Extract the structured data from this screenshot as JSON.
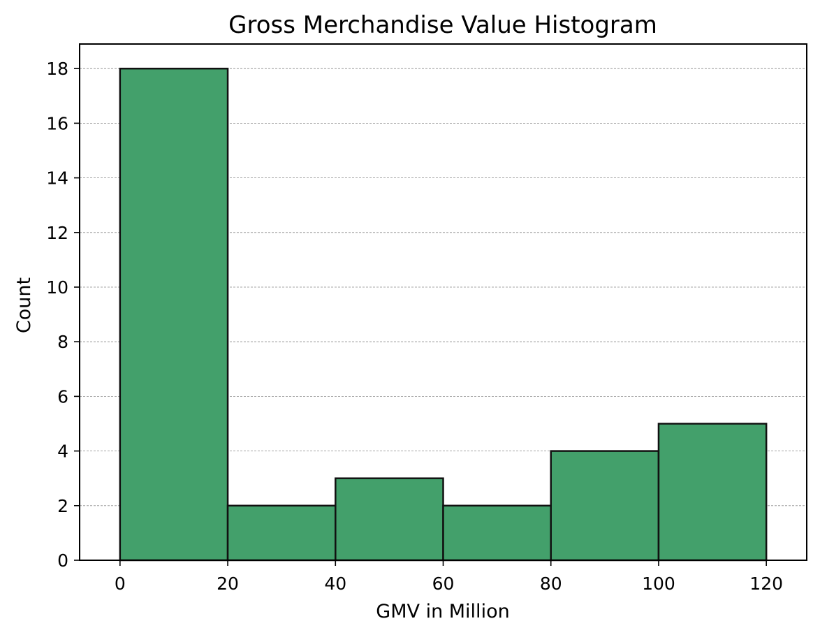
{
  "chart_data": {
    "type": "bar",
    "title": "Gross Merchandise Value Histogram",
    "xlabel": "GMV in Million",
    "ylabel": "Count",
    "bins": [
      {
        "start": 0,
        "end": 20,
        "count": 18
      },
      {
        "start": 20,
        "end": 40,
        "count": 2
      },
      {
        "start": 40,
        "end": 60,
        "count": 3
      },
      {
        "start": 60,
        "end": 80,
        "count": 2
      },
      {
        "start": 80,
        "end": 100,
        "count": 4
      },
      {
        "start": 100,
        "end": 120,
        "count": 5
      }
    ],
    "xlim": [
      -7.5,
      127.5
    ],
    "ylim": [
      0,
      18.9
    ],
    "xticks": [
      0,
      20,
      40,
      60,
      80,
      100,
      120
    ],
    "yticks": [
      0,
      2,
      4,
      6,
      8,
      10,
      12,
      14,
      16,
      18
    ],
    "grid": {
      "y": true,
      "x": false
    },
    "colors": {
      "bar_fill": "#43a06b",
      "bar_edge": "#111111",
      "grid": "#888888"
    }
  }
}
